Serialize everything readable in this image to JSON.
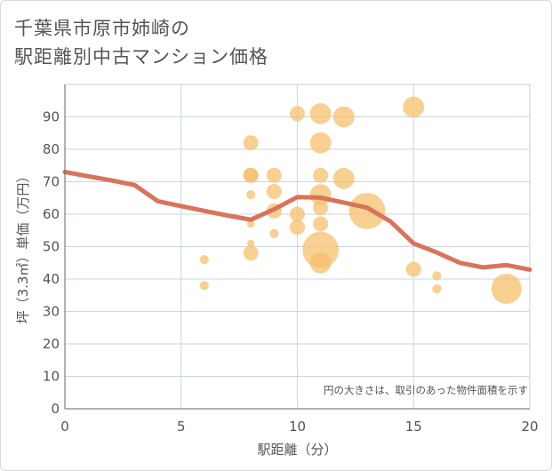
{
  "title": {
    "line1": "千葉県市原市姉崎の",
    "line2": "駅距離別中古マンション価格"
  },
  "chart_data": {
    "type": "scatter",
    "title": "千葉県市原市姉崎の駅距離別中古マンション価格",
    "xlabel": "駅距離（分）",
    "ylabel": "坪（3.3㎡）単価（万円）",
    "xlim": [
      0,
      20
    ],
    "ylim": [
      0,
      100
    ],
    "xticks": [
      0,
      5,
      10,
      15,
      20
    ],
    "yticks": [
      0,
      10,
      20,
      30,
      40,
      50,
      60,
      70,
      80,
      90
    ],
    "grid": true,
    "annotation": "円の大きさは、取引のあった物件面積を示す",
    "bubble_color": "#f5c06e",
    "line_color": "#d9735a",
    "points": [
      {
        "x": 6,
        "y": 46,
        "size": 3
      },
      {
        "x": 6,
        "y": 38,
        "size": 3
      },
      {
        "x": 8,
        "y": 82,
        "size": 5
      },
      {
        "x": 8,
        "y": 72,
        "size": 5
      },
      {
        "x": 8,
        "y": 72,
        "size": 5
      },
      {
        "x": 8,
        "y": 66,
        "size": 3
      },
      {
        "x": 8,
        "y": 57,
        "size": 2.5
      },
      {
        "x": 8,
        "y": 51,
        "size": 2.5
      },
      {
        "x": 8,
        "y": 48,
        "size": 5
      },
      {
        "x": 9,
        "y": 72,
        "size": 5
      },
      {
        "x": 9,
        "y": 67,
        "size": 5
      },
      {
        "x": 9,
        "y": 61,
        "size": 5
      },
      {
        "x": 9,
        "y": 54,
        "size": 3
      },
      {
        "x": 10,
        "y": 91,
        "size": 5
      },
      {
        "x": 10,
        "y": 60,
        "size": 5
      },
      {
        "x": 10,
        "y": 56,
        "size": 5
      },
      {
        "x": 11,
        "y": 91,
        "size": 7
      },
      {
        "x": 11,
        "y": 82,
        "size": 7
      },
      {
        "x": 11,
        "y": 72,
        "size": 5
      },
      {
        "x": 11,
        "y": 66,
        "size": 7
      },
      {
        "x": 11,
        "y": 62,
        "size": 5
      },
      {
        "x": 11,
        "y": 57,
        "size": 5
      },
      {
        "x": 11,
        "y": 49,
        "size": 12
      },
      {
        "x": 11,
        "y": 45,
        "size": 7
      },
      {
        "x": 12,
        "y": 90,
        "size": 7
      },
      {
        "x": 12,
        "y": 71,
        "size": 7
      },
      {
        "x": 13,
        "y": 61,
        "size": 12
      },
      {
        "x": 15,
        "y": 93,
        "size": 7
      },
      {
        "x": 15,
        "y": 43,
        "size": 5
      },
      {
        "x": 16,
        "y": 41,
        "size": 3
      },
      {
        "x": 16,
        "y": 37,
        "size": 3
      },
      {
        "x": 19,
        "y": 37,
        "size": 10
      }
    ],
    "trend_line": {
      "x": [
        0,
        1,
        2,
        3,
        4,
        5,
        6,
        7,
        8,
        9,
        10,
        11,
        12,
        13,
        14,
        15,
        16,
        17,
        18,
        19,
        20
      ],
      "y": [
        73,
        71.7,
        70.4,
        69,
        64,
        62.5,
        61,
        59.6,
        58.3,
        61.5,
        65.3,
        65.1,
        63.6,
        62,
        57.8,
        51,
        48.2,
        45,
        43.6,
        44.3,
        42.9
      ]
    }
  }
}
